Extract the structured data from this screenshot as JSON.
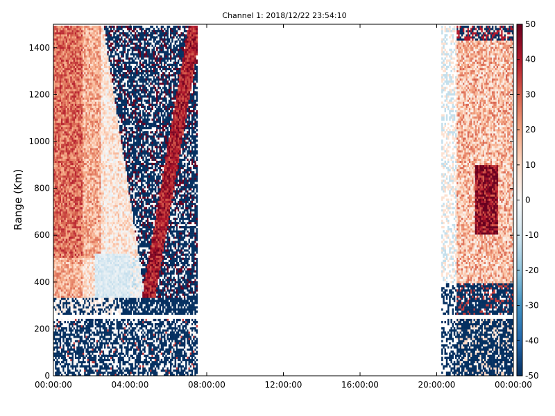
{
  "chart_data": {
    "type": "heatmap",
    "title": "Channel 1: 2018/12/22 23:54:10",
    "xlabel": "",
    "ylabel": "Range (Km)",
    "x_ticks": [
      "00:00:00",
      "04:00:00",
      "08:00:00",
      "12:00:00",
      "16:00:00",
      "20:00:00",
      "00:00:00"
    ],
    "x_tick_hours": [
      0,
      4,
      8,
      12,
      16,
      20,
      24
    ],
    "xlim_hours": [
      0,
      24
    ],
    "y_ticks": [
      0,
      200,
      400,
      600,
      800,
      1000,
      1200,
      1400
    ],
    "ylim": [
      0,
      1500
    ],
    "colorbar": {
      "ticks": [
        50,
        40,
        30,
        20,
        10,
        0,
        -10,
        -20,
        -30,
        -40,
        -50
      ],
      "range": [
        -50,
        50
      ],
      "colormap": "RdBu_r",
      "colors": {
        "low": "#053061",
        "mid": "#f7f7f7",
        "high": "#67001f"
      }
    },
    "data_coverage_hours": [
      [
        0,
        7.5
      ],
      [
        20.2,
        24
      ]
    ],
    "gap_hours": [
      7.5,
      20.2
    ],
    "grid": false
  }
}
